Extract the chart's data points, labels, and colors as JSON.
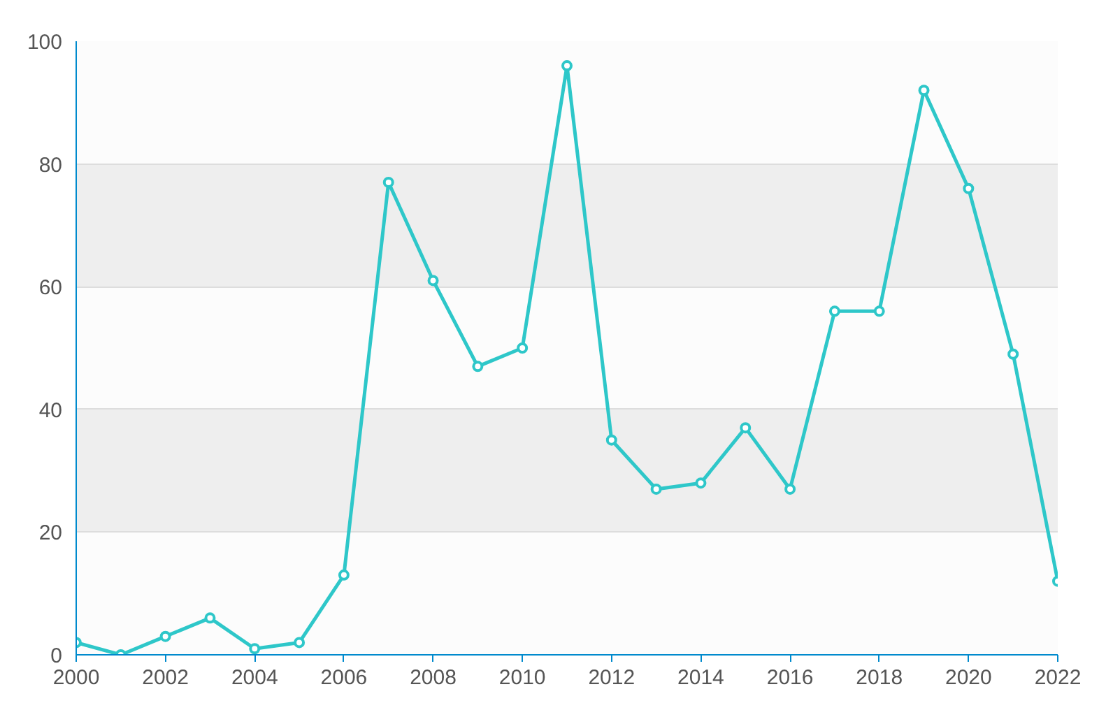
{
  "chart_data": {
    "type": "line",
    "x": [
      2000,
      2001,
      2002,
      2003,
      2004,
      2005,
      2006,
      2007,
      2008,
      2009,
      2010,
      2011,
      2012,
      2013,
      2014,
      2015,
      2016,
      2017,
      2018,
      2019,
      2020,
      2021,
      2022
    ],
    "series": [
      {
        "color": "#2ec7c9",
        "values": [
          2,
          0,
          3,
          6,
          1,
          2,
          13,
          77,
          61,
          47,
          50,
          96,
          35,
          27,
          28,
          37,
          27,
          56,
          56,
          92,
          76,
          49,
          12
        ]
      }
    ],
    "xlim": [
      2000,
      2022
    ],
    "xticks": [
      2000,
      2002,
      2004,
      2006,
      2008,
      2010,
      2012,
      2014,
      2016,
      2018,
      2020,
      2022
    ],
    "ylim": [
      0,
      100
    ],
    "yticks": [
      0,
      20,
      40,
      60,
      80,
      100
    ],
    "grid": "y",
    "marker": "circle",
    "line_style": "solid"
  }
}
